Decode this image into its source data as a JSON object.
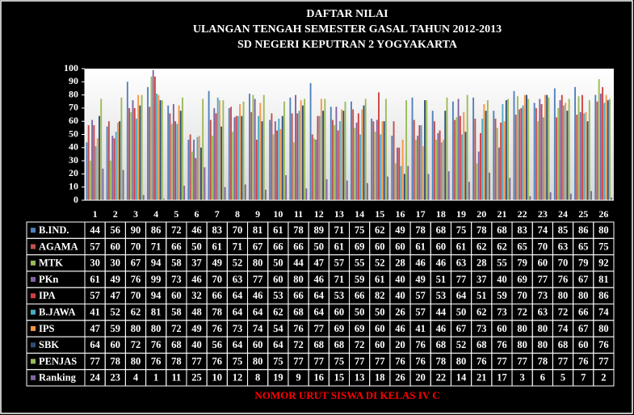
{
  "chart_data": {
    "type": "bar",
    "title": "DAFTAR NILAI",
    "subtitle": "ULANGAN TENGAH SEMESTER GASAL TAHUN 2012-2013",
    "subtitle2": "SD NEGERI KEPUTRAN 2 YOGYAKARTA",
    "x_label": "NOMOR URUT SISWA DI KELAS IV C",
    "categories": [
      "1",
      "2",
      "3",
      "4",
      "5",
      "6",
      "7",
      "8",
      "9",
      "10",
      "11",
      "12",
      "13",
      "14",
      "15",
      "16",
      "17",
      "18",
      "19",
      "20",
      "21",
      "22",
      "23",
      "24",
      "25",
      "26"
    ],
    "ylim": [
      0,
      100
    ],
    "yticks": [
      0,
      10,
      20,
      30,
      40,
      50,
      60,
      70,
      80,
      90,
      100
    ],
    "grid": false,
    "series": [
      {
        "name": "B.IND.",
        "color": "#4f81bd",
        "values": [
          44,
          56,
          90,
          86,
          72,
          46,
          83,
          70,
          81,
          61,
          78,
          89,
          71,
          75,
          62,
          49,
          78,
          68,
          75,
          78,
          68,
          83,
          74,
          85,
          86,
          80
        ]
      },
      {
        "name": "AGAMA",
        "color": "#c0504d",
        "values": [
          57,
          60,
          70,
          71,
          66,
          50,
          61,
          71,
          67,
          66,
          66,
          50,
          61,
          69,
          60,
          60,
          61,
          60,
          61,
          62,
          62,
          65,
          70,
          63,
          65,
          75
        ]
      },
      {
        "name": "MTK",
        "color": "#9bbb59",
        "values": [
          30,
          30,
          67,
          94,
          58,
          37,
          49,
          52,
          80,
          50,
          44,
          47,
          57,
          55,
          52,
          28,
          46,
          46,
          63,
          28,
          55,
          79,
          60,
          70,
          79,
          92
        ]
      },
      {
        "name": "PKn",
        "color": "#8064a2",
        "values": [
          61,
          49,
          76,
          99,
          73,
          46,
          70,
          63,
          77,
          60,
          80,
          46,
          71,
          59,
          61,
          40,
          49,
          51,
          77,
          37,
          40,
          69,
          77,
          76,
          67,
          81
        ]
      },
      {
        "name": "IPA",
        "color": "#d04040",
        "values": [
          57,
          47,
          70,
          94,
          60,
          32,
          66,
          64,
          46,
          53,
          66,
          64,
          53,
          66,
          82,
          40,
          57,
          53,
          64,
          51,
          59,
          70,
          73,
          80,
          80,
          86
        ]
      },
      {
        "name": "B.JAWA",
        "color": "#4bacc6",
        "values": [
          41,
          52,
          62,
          81,
          58,
          48,
          78,
          64,
          64,
          62,
          68,
          64,
          60,
          50,
          50,
          26,
          57,
          44,
          50,
          62,
          73,
          72,
          63,
          72,
          66,
          74
        ]
      },
      {
        "name": "IPS",
        "color": "#f79646",
        "values": [
          47,
          59,
          80,
          80,
          72,
          49,
          76,
          73,
          74,
          54,
          76,
          77,
          69,
          69,
          60,
          46,
          41,
          46,
          67,
          73,
          60,
          80,
          80,
          74,
          67,
          80
        ]
      },
      {
        "name": "SBK",
        "color": "#2c4d75",
        "values": [
          64,
          60,
          72,
          76,
          68,
          40,
          56,
          64,
          60,
          64,
          72,
          68,
          68,
          72,
          60,
          20,
          76,
          68,
          52,
          68,
          76,
          80,
          80,
          68,
          60,
          76
        ]
      },
      {
        "name": "PENJAS",
        "color": "#9bbb59",
        "values": [
          77,
          78,
          80,
          76,
          78,
          77,
          76,
          75,
          80,
          75,
          77,
          77,
          75,
          77,
          77,
          76,
          76,
          78,
          80,
          76,
          77,
          77,
          78,
          77,
          76,
          77
        ]
      },
      {
        "name": "Ranking",
        "color": "#8064a2",
        "values": [
          24,
          23,
          4,
          1,
          11,
          25,
          10,
          12,
          8,
          19,
          9,
          16,
          15,
          13,
          18,
          26,
          20,
          22,
          14,
          21,
          17,
          3,
          6,
          5,
          7,
          2
        ]
      }
    ]
  }
}
